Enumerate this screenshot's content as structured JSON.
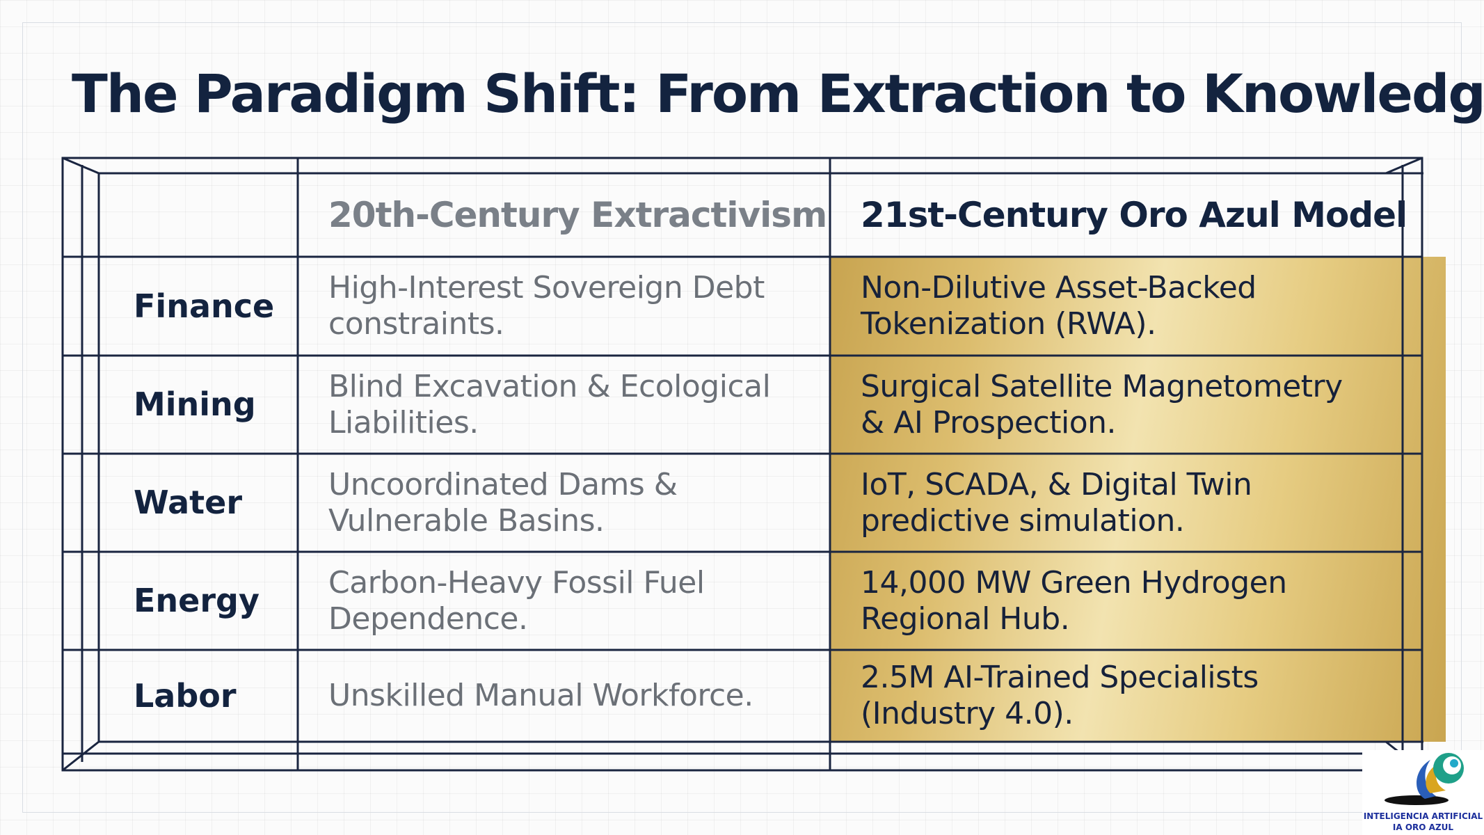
{
  "title": "The Paradigm Shift: From Extraction to Knowledge",
  "table": {
    "headers": [
      "",
      "20th-Century Extractivism",
      "21st-Century Oro Azul Model"
    ],
    "rows": [
      {
        "label": "Finance",
        "old": "High-Interest Sovereign Debt\nconstraints.",
        "new": "Non-Dilutive Asset-Backed\nTokenization (RWA)."
      },
      {
        "label": "Mining",
        "old": "Blind Excavation & Ecological\nLiabilities.",
        "new": "Surgical Satellite Magnetometry\n& AI Prospection."
      },
      {
        "label": "Water",
        "old": "Uncoordinated Dams &\nVulnerable Basins.",
        "new": "IoT, SCADA, & Digital Twin\npredictive simulation."
      },
      {
        "label": "Energy",
        "old": "Carbon-Heavy Fossil Fuel\nDependence.",
        "new": "14,000 MW Green Hydrogen\nRegional Hub."
      },
      {
        "label": "Labor",
        "old": "Unskilled Manual Workforce.",
        "new": "2.5M AI-Trained Specialists\n(Industry 4.0)."
      }
    ]
  },
  "logo": {
    "line1": "INTELIGENCIA ARTIFICIAL",
    "line2": "IA ORO AZUL"
  },
  "colors": {
    "navy": "#13233f",
    "gold": "#dcbd6e",
    "muted_text": "#6b7077"
  }
}
